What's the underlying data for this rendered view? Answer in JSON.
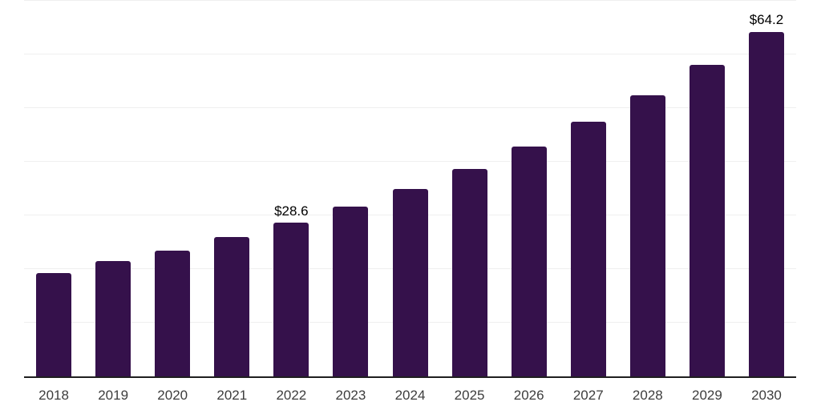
{
  "chart_data": {
    "type": "bar",
    "title": "",
    "xlabel": "",
    "ylabel": "",
    "categories": [
      "2018",
      "2019",
      "2020",
      "2021",
      "2022",
      "2023",
      "2024",
      "2025",
      "2026",
      "2027",
      "2028",
      "2029",
      "2030"
    ],
    "values": [
      19.3,
      21.5,
      23.5,
      25.9,
      28.6,
      31.6,
      34.9,
      38.6,
      42.8,
      47.4,
      52.4,
      58.0,
      64.2
    ],
    "data_labels": [
      "",
      "",
      "",
      "",
      "$28.6",
      "",
      "",
      "",
      "",
      "",
      "",
      "",
      "$64.2"
    ],
    "ylim": [
      0,
      70
    ],
    "gridline_step": 10,
    "grid": true,
    "legend_position": "none",
    "currency_unit": "$",
    "colors": {
      "bar": "#35114B",
      "axis_line": "#1f1f1f",
      "gridline": "#efefef",
      "tick_label": "#3d3d3d",
      "data_label": "#000000",
      "background": "#ffffff"
    }
  }
}
